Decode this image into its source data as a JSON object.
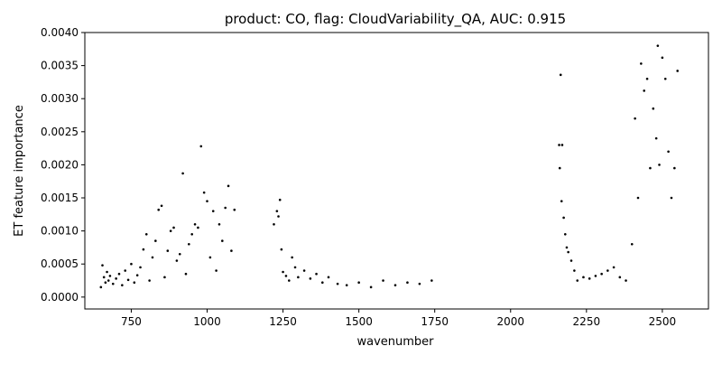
{
  "chart_data": {
    "type": "scatter",
    "title": "product: CO, flag: CloudVariability_QA, AUC: 0.915",
    "xlabel": "wavenumber",
    "ylabel": "ET feature importance",
    "xlim": [
      597,
      2652
    ],
    "ylim": [
      -0.00018,
      0.004
    ],
    "xticks": [
      750,
      1000,
      1250,
      1500,
      1750,
      2000,
      2250,
      2500
    ],
    "xtick_labels": [
      "750",
      "1000",
      "1250",
      "1500",
      "1750",
      "2000",
      "2250",
      "2500"
    ],
    "yticks": [
      0.0,
      0.0005,
      0.001,
      0.0015,
      0.002,
      0.0025,
      0.003,
      0.0035,
      0.004
    ],
    "ytick_labels": [
      "0.0000",
      "0.0005",
      "0.0010",
      "0.0015",
      "0.0020",
      "0.0025",
      "0.0030",
      "0.0035",
      "0.0040"
    ],
    "grid": false,
    "marker_color": "#000000",
    "series": [
      {
        "points": [
          [
            650,
            0.00015
          ],
          [
            655,
            0.00048
          ],
          [
            660,
            0.0003
          ],
          [
            665,
            0.00022
          ],
          [
            670,
            0.00038
          ],
          [
            675,
            0.00025
          ],
          [
            680,
            0.00032
          ],
          [
            690,
            0.0002
          ],
          [
            700,
            0.00028
          ],
          [
            710,
            0.00035
          ],
          [
            720,
            0.00018
          ],
          [
            730,
            0.0004
          ],
          [
            740,
            0.00026
          ],
          [
            750,
            0.0005
          ],
          [
            760,
            0.00022
          ],
          [
            770,
            0.00033
          ],
          [
            780,
            0.00045
          ],
          [
            790,
            0.00072
          ],
          [
            800,
            0.00095
          ],
          [
            810,
            0.00025
          ],
          [
            820,
            0.0006
          ],
          [
            830,
            0.00085
          ],
          [
            840,
            0.00132
          ],
          [
            850,
            0.00138
          ],
          [
            860,
            0.0003
          ],
          [
            870,
            0.0007
          ],
          [
            880,
            0.001
          ],
          [
            890,
            0.00105
          ],
          [
            900,
            0.00055
          ],
          [
            910,
            0.00065
          ],
          [
            920,
            0.00187
          ],
          [
            930,
            0.00035
          ],
          [
            940,
            0.0008
          ],
          [
            950,
            0.00095
          ],
          [
            960,
            0.0011
          ],
          [
            970,
            0.00105
          ],
          [
            980,
            0.00228
          ],
          [
            990,
            0.00158
          ],
          [
            1000,
            0.00145
          ],
          [
            1010,
            0.0006
          ],
          [
            1020,
            0.0013
          ],
          [
            1030,
            0.0004
          ],
          [
            1040,
            0.0011
          ],
          [
            1050,
            0.00085
          ],
          [
            1060,
            0.00135
          ],
          [
            1070,
            0.00168
          ],
          [
            1080,
            0.0007
          ],
          [
            1090,
            0.00132
          ],
          [
            1220,
            0.0011
          ],
          [
            1230,
            0.0013
          ],
          [
            1235,
            0.00122
          ],
          [
            1240,
            0.00147
          ],
          [
            1245,
            0.00072
          ],
          [
            1250,
            0.00038
          ],
          [
            1260,
            0.00032
          ],
          [
            1270,
            0.00025
          ],
          [
            1280,
            0.0006
          ],
          [
            1290,
            0.00045
          ],
          [
            1300,
            0.0003
          ],
          [
            1320,
            0.0004
          ],
          [
            1340,
            0.00028
          ],
          [
            1360,
            0.00035
          ],
          [
            1380,
            0.00022
          ],
          [
            1400,
            0.0003
          ],
          [
            1430,
            0.0002
          ],
          [
            1460,
            0.00018
          ],
          [
            1500,
            0.00022
          ],
          [
            1540,
            0.00015
          ],
          [
            1580,
            0.00025
          ],
          [
            1620,
            0.00018
          ],
          [
            1660,
            0.00022
          ],
          [
            1700,
            0.0002
          ],
          [
            1740,
            0.00025
          ],
          [
            2160,
            0.0023
          ],
          [
            2162,
            0.00195
          ],
          [
            2165,
            0.00336
          ],
          [
            2168,
            0.00145
          ],
          [
            2170,
            0.0023
          ],
          [
            2175,
            0.0012
          ],
          [
            2180,
            0.00095
          ],
          [
            2185,
            0.00075
          ],
          [
            2190,
            0.00068
          ],
          [
            2200,
            0.00055
          ],
          [
            2210,
            0.0004
          ],
          [
            2220,
            0.00025
          ],
          [
            2240,
            0.0003
          ],
          [
            2260,
            0.00028
          ],
          [
            2280,
            0.00032
          ],
          [
            2300,
            0.00035
          ],
          [
            2320,
            0.0004
          ],
          [
            2340,
            0.00045
          ],
          [
            2360,
            0.0003
          ],
          [
            2380,
            0.00025
          ],
          [
            2400,
            0.0008
          ],
          [
            2410,
            0.0027
          ],
          [
            2420,
            0.0015
          ],
          [
            2430,
            0.00353
          ],
          [
            2440,
            0.00312
          ],
          [
            2450,
            0.0033
          ],
          [
            2460,
            0.00195
          ],
          [
            2470,
            0.00285
          ],
          [
            2480,
            0.0024
          ],
          [
            2485,
            0.0038
          ],
          [
            2490,
            0.002
          ],
          [
            2500,
            0.00362
          ],
          [
            2510,
            0.0033
          ],
          [
            2520,
            0.0022
          ],
          [
            2530,
            0.0015
          ],
          [
            2540,
            0.00195
          ],
          [
            2550,
            0.00342
          ]
        ]
      }
    ]
  }
}
